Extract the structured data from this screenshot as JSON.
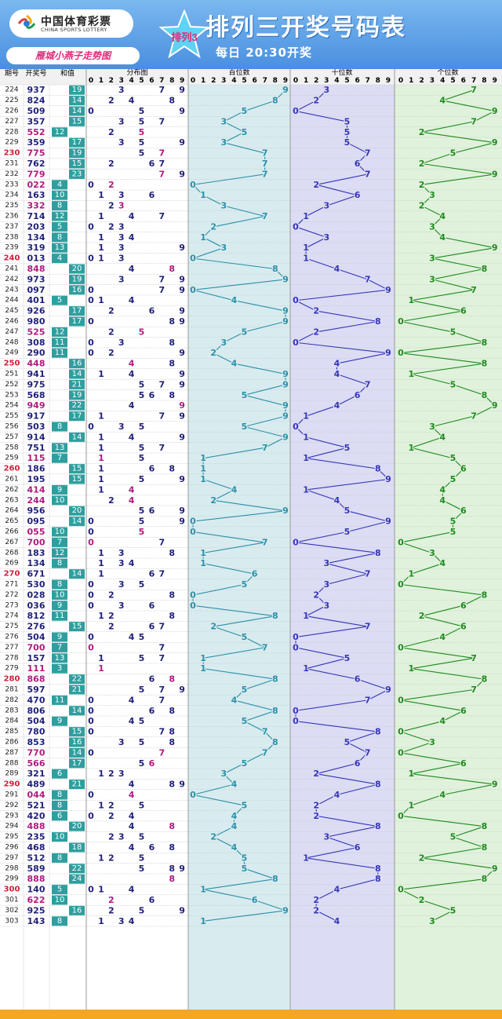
{
  "header": {
    "logo_cn": "中国体育彩票",
    "logo_en": "CHINA SPORTS LOTTERY",
    "slogan": "雁城小燕子走势图",
    "badge": "排列3",
    "title": "排列三开奖号码表",
    "subtitle": "每日 20:30开奖",
    "colors": {
      "header": "#4a8fe0",
      "slogan": "#e0287a",
      "footer": "#f5a623"
    }
  },
  "columns": {
    "period": "期号",
    "number": "开奖号",
    "sum": "和值",
    "distribution": "分布图",
    "hundreds": "百位数",
    "tens": "十位数",
    "ones": "个位数",
    "digits": [
      "0",
      "1",
      "2",
      "3",
      "4",
      "5",
      "6",
      "7",
      "8",
      "9"
    ]
  },
  "chart_data": {
    "type": "table",
    "title": "排列三开奖号码表",
    "periods": [
      224,
      225,
      226,
      227,
      228,
      229,
      230,
      231,
      232,
      233,
      234,
      235,
      236,
      237,
      238,
      239,
      240,
      241,
      242,
      243,
      244,
      245,
      246,
      247,
      248,
      249,
      250,
      251,
      252,
      253,
      254,
      255,
      256,
      257,
      258,
      259,
      260,
      261,
      262,
      263,
      264,
      265,
      266,
      267,
      268,
      269,
      270,
      271,
      272,
      273,
      274,
      275,
      276,
      277,
      278,
      279,
      280,
      281,
      282,
      283,
      284,
      285,
      286,
      287,
      288,
      289,
      290,
      291,
      292,
      293,
      294,
      295,
      296,
      297,
      298,
      299,
      300,
      301,
      302,
      303
    ],
    "numbers": [
      "937",
      "824",
      "509",
      "357",
      "552",
      "359",
      "775",
      "762",
      "779",
      "022",
      "163",
      "332",
      "714",
      "203",
      "134",
      "319",
      "013",
      "848",
      "973",
      "097",
      "401",
      "926",
      "980",
      "525",
      "308",
      "290",
      "448",
      "941",
      "975",
      "568",
      "949",
      "917",
      "503",
      "914",
      "751",
      "115",
      "186",
      "195",
      "414",
      "244",
      "956",
      "095",
      "055",
      "700",
      "183",
      "134",
      "671",
      "530",
      "028",
      "036",
      "812",
      "276",
      "504",
      "700",
      "157",
      "111",
      "868",
      "597",
      "470",
      "806",
      "504",
      "780",
      "853",
      "770",
      "566",
      "321",
      "489",
      "044",
      "521",
      "420",
      "488",
      "235",
      "468",
      "512",
      "589",
      "888",
      "140",
      "622",
      "925",
      "143"
    ],
    "sums": [
      19,
      14,
      14,
      15,
      12,
      17,
      19,
      15,
      23,
      4,
      10,
      8,
      12,
      5,
      8,
      13,
      4,
      20,
      19,
      16,
      5,
      17,
      17,
      12,
      11,
      11,
      16,
      14,
      21,
      19,
      22,
      17,
      8,
      14,
      13,
      7,
      15,
      15,
      9,
      10,
      20,
      14,
      10,
      7,
      12,
      8,
      14,
      8,
      10,
      9,
      11,
      15,
      9,
      7,
      13,
      3,
      22,
      21,
      11,
      14,
      9,
      15,
      16,
      14,
      17,
      6,
      21,
      8,
      8,
      6,
      20,
      10,
      18,
      8,
      22,
      24,
      5,
      10,
      16,
      8
    ],
    "highlight_periods": [
      230,
      240,
      250,
      260,
      270,
      280,
      290,
      300
    ],
    "series": [
      {
        "name": "百位数",
        "color": "#2b8fa8"
      },
      {
        "name": "十位数",
        "color": "#3535b5"
      },
      {
        "name": "个位数",
        "color": "#1e8a1e"
      }
    ]
  }
}
